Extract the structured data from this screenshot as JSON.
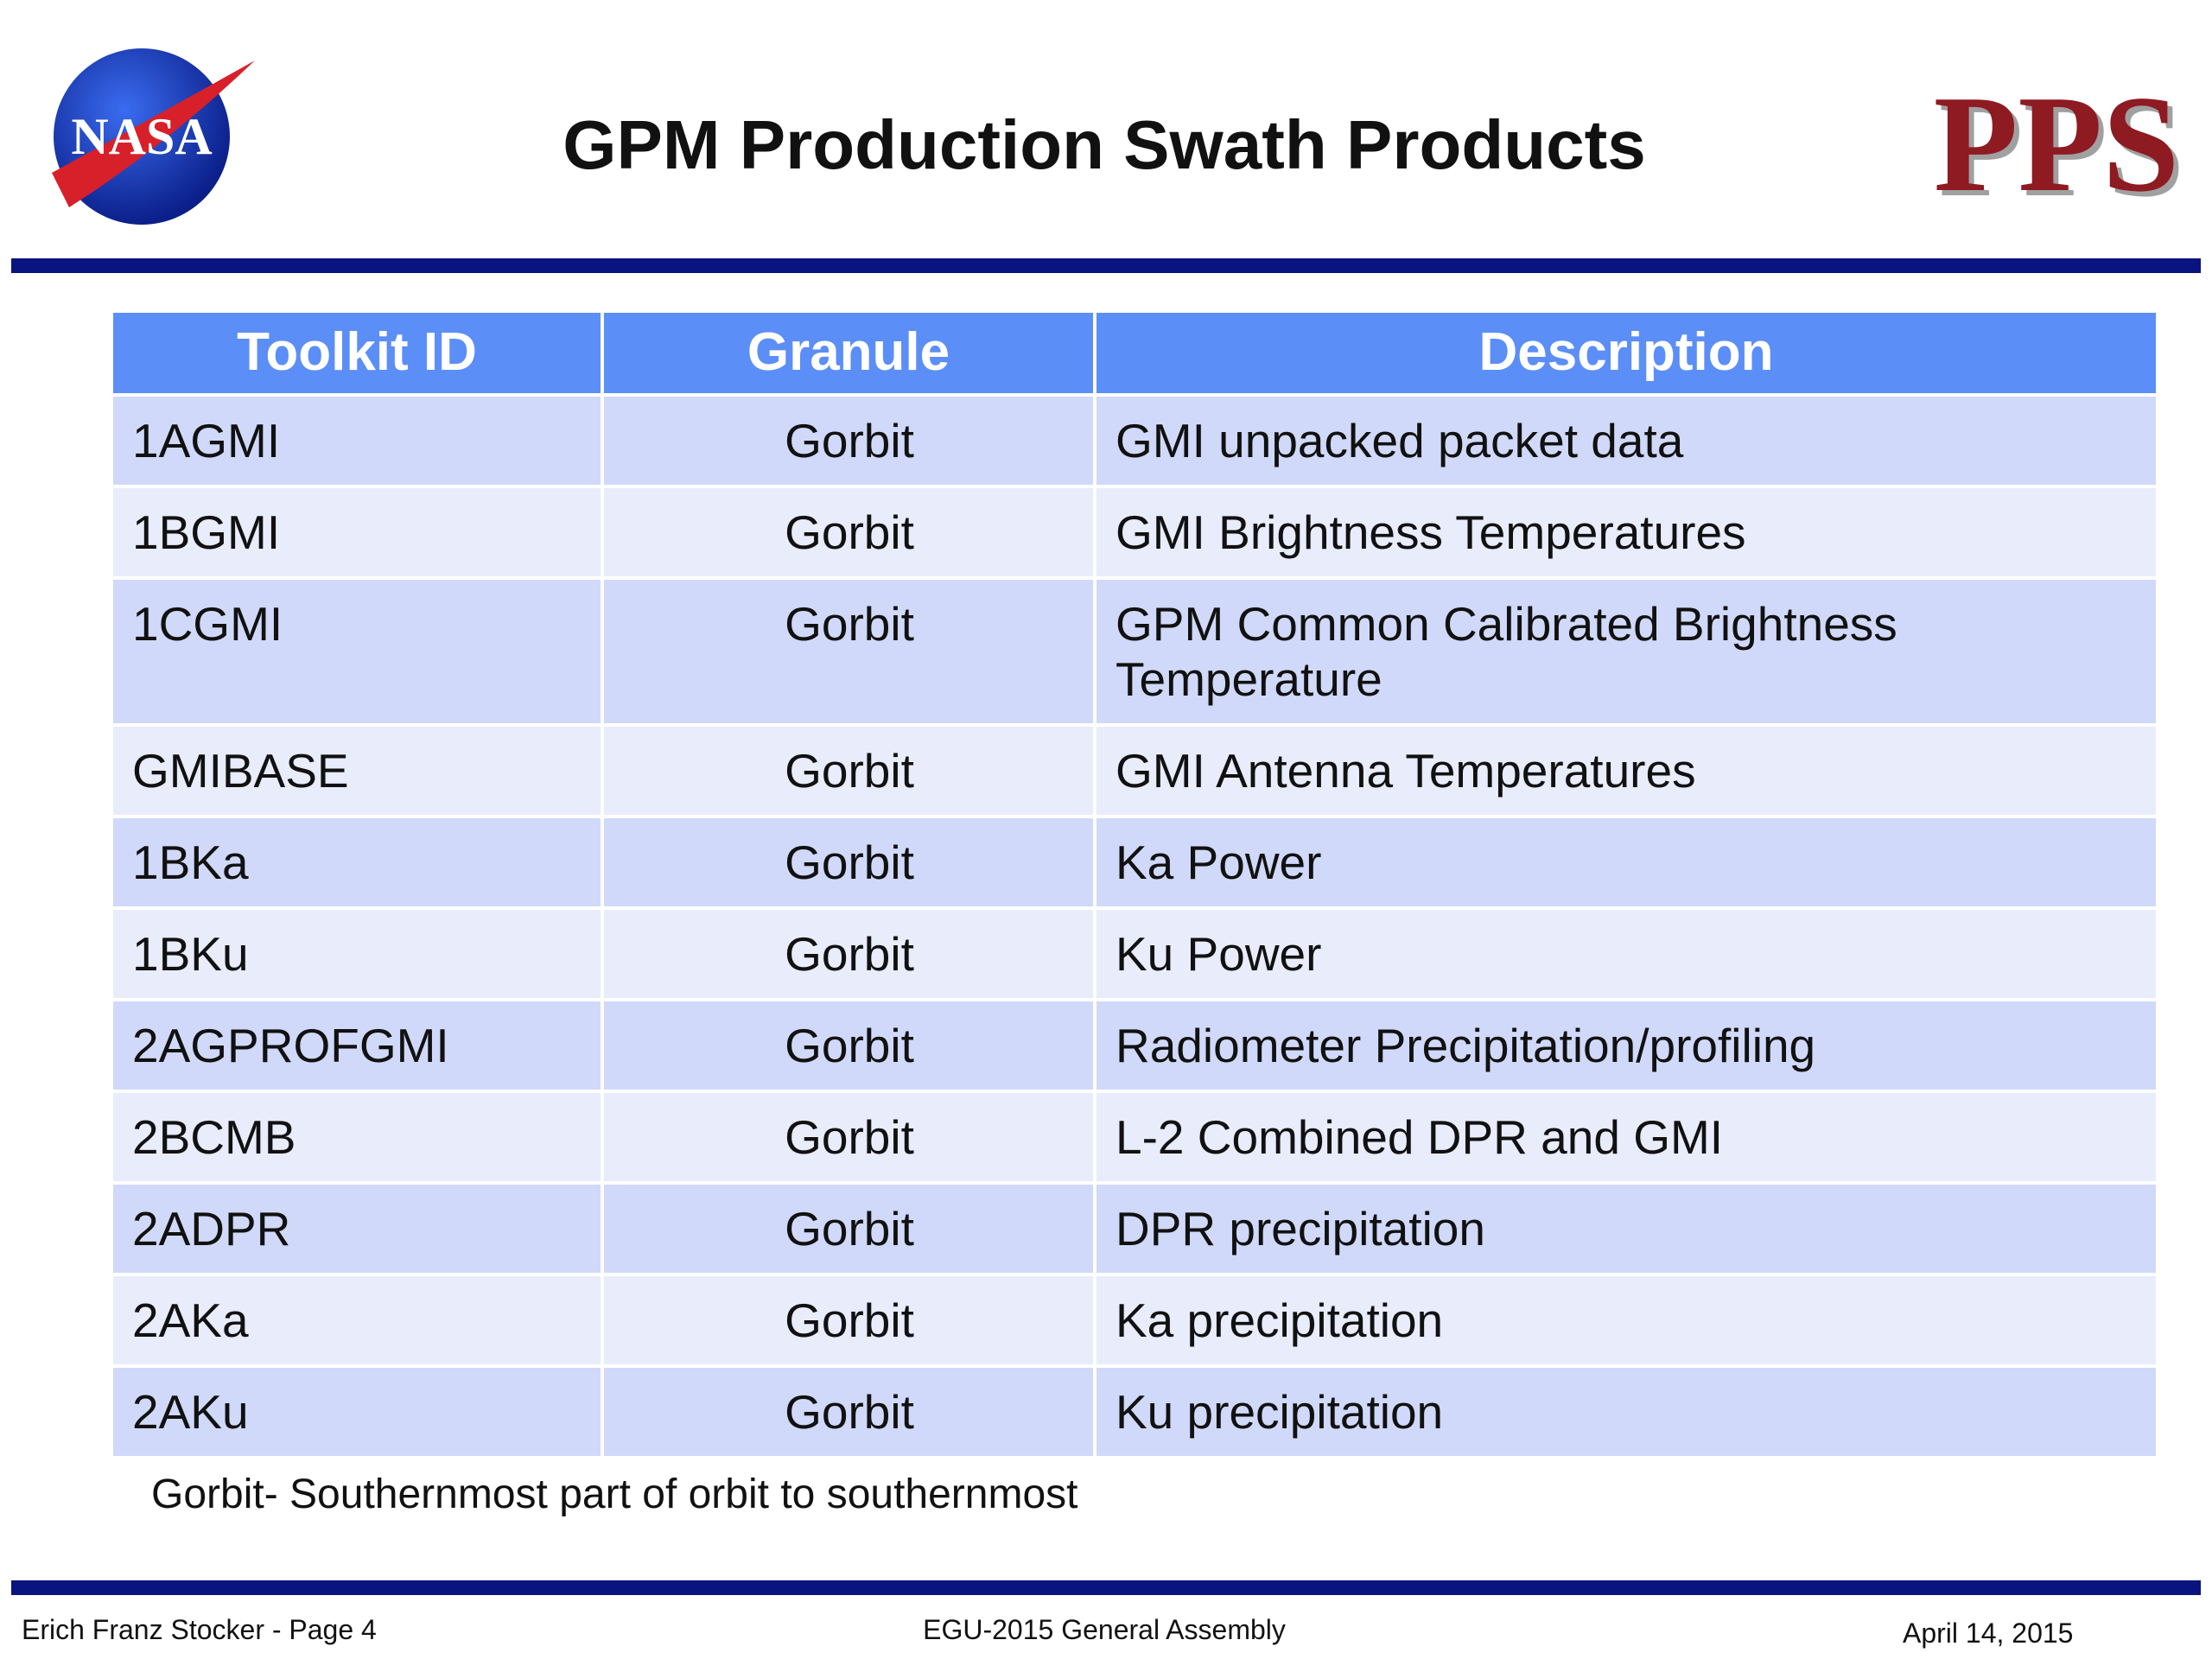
{
  "header": {
    "title": "GPM Production Swath Products",
    "logos": [
      "NASA",
      "PPS"
    ]
  },
  "table": {
    "columns": [
      "Toolkit ID",
      "Granule",
      "Description"
    ],
    "rows": [
      [
        "1AGMI",
        "Gorbit",
        "GMI unpacked packet data"
      ],
      [
        "1BGMI",
        "Gorbit",
        "GMI Brightness Temperatures"
      ],
      [
        "1CGMI",
        "Gorbit",
        "GPM Common Calibrated Brightness Temperature"
      ],
      [
        "GMIBASE",
        "Gorbit",
        "GMI Antenna Temperatures"
      ],
      [
        "1BKa",
        "Gorbit",
        "Ka Power"
      ],
      [
        "1BKu",
        "Gorbit",
        "Ku Power"
      ],
      [
        "2AGPROFGMI",
        "Gorbit",
        "Radiometer Precipitation/profiling"
      ],
      [
        "2BCMB",
        "Gorbit",
        "L-2 Combined DPR and GMI"
      ],
      [
        "2ADPR",
        "Gorbit",
        "DPR precipitation"
      ],
      [
        "2AKa",
        "Gorbit",
        "Ka precipitation"
      ],
      [
        "2AKu",
        "Gorbit",
        "Ku precipitation"
      ]
    ]
  },
  "footnote": "Gorbit- Southernmost part of orbit to southernmost",
  "footer": {
    "left": "Erich Franz Stocker - Page 4",
    "center": "EGU-2015 General Assembly",
    "right": "April 14, 2015"
  }
}
